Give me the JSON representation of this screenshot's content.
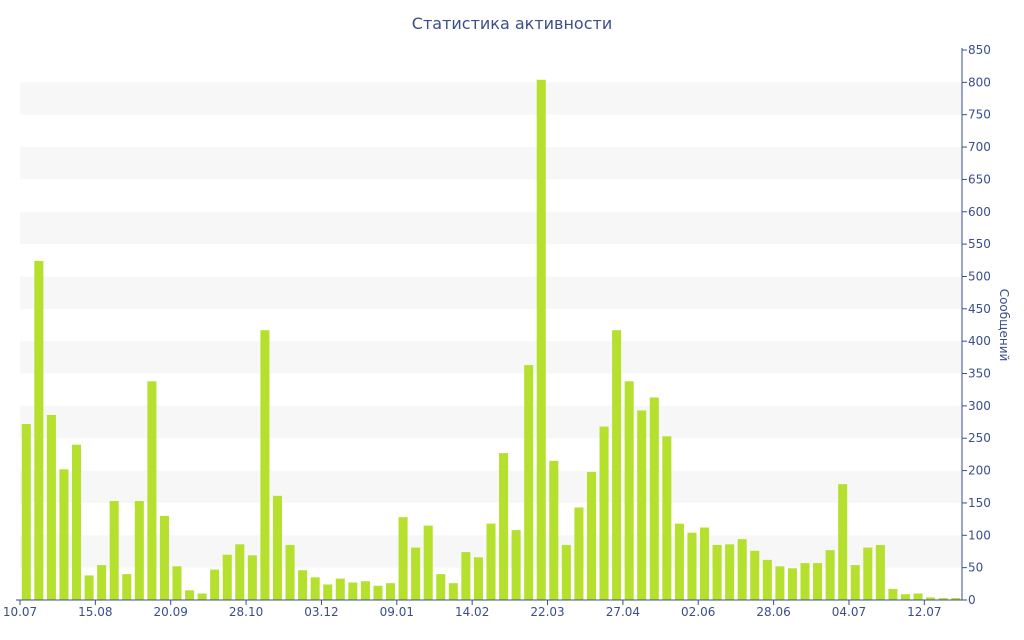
{
  "chart_data": {
    "type": "bar",
    "title": "Статистика активности",
    "ylabel": "Сообщений",
    "ylim": [
      0,
      850
    ],
    "ytick_step": 50,
    "xtick_labels": [
      "10.07",
      "15.08",
      "20.09",
      "28.10",
      "03.12",
      "09.01",
      "14.02",
      "22.03",
      "27.04",
      "02.06",
      "28.06",
      "04.07",
      "12.07"
    ],
    "xtick_indices": [
      0,
      6,
      12,
      18,
      24,
      30,
      36,
      42,
      48,
      54,
      60,
      66,
      72
    ],
    "values": [
      272,
      524,
      286,
      202,
      240,
      38,
      54,
      153,
      40,
      153,
      338,
      130,
      52,
      15,
      10,
      47,
      70,
      86,
      69,
      417,
      161,
      85,
      46,
      35,
      24,
      33,
      27,
      29,
      22,
      26,
      128,
      81,
      115,
      40,
      26,
      74,
      66,
      118,
      227,
      108,
      363,
      804,
      215,
      85,
      143,
      198,
      268,
      417,
      338,
      293,
      313,
      253,
      118,
      104,
      112,
      85,
      86,
      94,
      76,
      62,
      52,
      49,
      57,
      57,
      77,
      179,
      54,
      81,
      85,
      17,
      9,
      10,
      4,
      3,
      3
    ],
    "bar_color": "#b5e02e",
    "axis_color": "#3a4e8c",
    "band_color": "#f7f7f7",
    "grid": "alternating-bands",
    "y_axis_position": "right"
  }
}
